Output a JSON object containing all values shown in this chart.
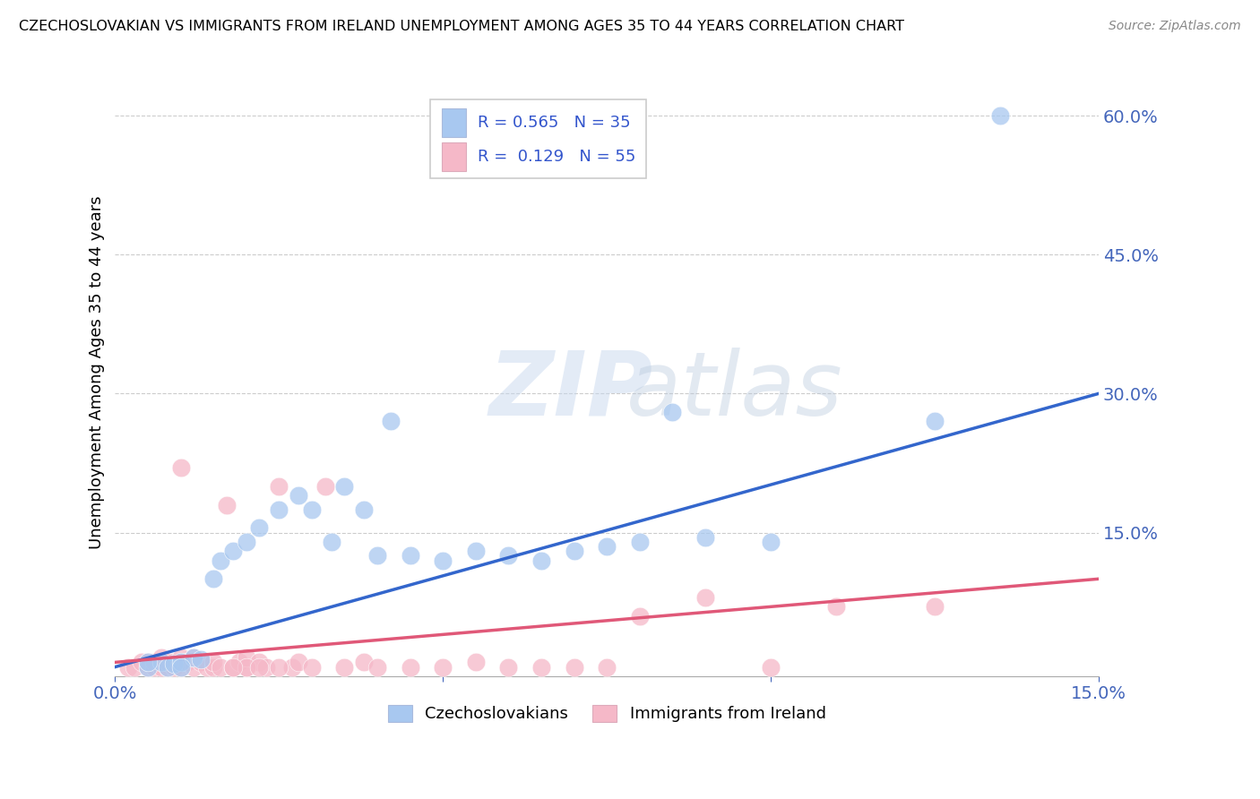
{
  "title": "CZECHOSLOVAKIAN VS IMMIGRANTS FROM IRELAND UNEMPLOYMENT AMONG AGES 35 TO 44 YEARS CORRELATION CHART",
  "source": "Source: ZipAtlas.com",
  "ylabel": "Unemployment Among Ages 35 to 44 years",
  "xlim": [
    0,
    0.15
  ],
  "ylim": [
    -0.005,
    0.65
  ],
  "yticks_right": [
    0.15,
    0.3,
    0.45,
    0.6
  ],
  "ytick_labels_right": [
    "15.0%",
    "30.0%",
    "45.0%",
    "60.0%"
  ],
  "legend_R1": "R = 0.565",
  "legend_N1": "N = 35",
  "legend_R2": "R =  0.129",
  "legend_N2": "N = 55",
  "blue_color": "#a8c8f0",
  "pink_color": "#f5b8c8",
  "blue_line_color": "#3366cc",
  "pink_line_color": "#e05878",
  "watermark_zip": "ZIP",
  "watermark_atlas": "atlas",
  "blue_scatter_x": [
    0.005,
    0.007,
    0.008,
    0.009,
    0.01,
    0.012,
    0.013,
    0.015,
    0.016,
    0.018,
    0.02,
    0.022,
    0.025,
    0.028,
    0.03,
    0.033,
    0.035,
    0.038,
    0.04,
    0.042,
    0.045,
    0.05,
    0.055,
    0.06,
    0.065,
    0.07,
    0.075,
    0.08,
    0.085,
    0.09,
    0.1,
    0.125,
    0.135,
    0.005,
    0.01
  ],
  "blue_scatter_y": [
    0.005,
    0.01,
    0.005,
    0.008,
    0.01,
    0.015,
    0.013,
    0.1,
    0.12,
    0.13,
    0.14,
    0.155,
    0.175,
    0.19,
    0.175,
    0.14,
    0.2,
    0.175,
    0.125,
    0.27,
    0.125,
    0.12,
    0.13,
    0.125,
    0.12,
    0.13,
    0.135,
    0.14,
    0.28,
    0.145,
    0.14,
    0.27,
    0.6,
    0.01,
    0.005
  ],
  "pink_scatter_x": [
    0.002,
    0.003,
    0.004,
    0.005,
    0.005,
    0.006,
    0.006,
    0.007,
    0.007,
    0.008,
    0.008,
    0.009,
    0.009,
    0.01,
    0.01,
    0.011,
    0.012,
    0.012,
    0.013,
    0.014,
    0.015,
    0.015,
    0.016,
    0.017,
    0.018,
    0.019,
    0.02,
    0.02,
    0.022,
    0.023,
    0.025,
    0.027,
    0.028,
    0.03,
    0.032,
    0.035,
    0.038,
    0.04,
    0.045,
    0.05,
    0.055,
    0.06,
    0.065,
    0.07,
    0.075,
    0.08,
    0.09,
    0.1,
    0.11,
    0.125,
    0.01,
    0.02,
    0.025,
    0.018,
    0.022
  ],
  "pink_scatter_y": [
    0.005,
    0.005,
    0.01,
    0.005,
    0.01,
    0.005,
    0.01,
    0.005,
    0.015,
    0.005,
    0.01,
    0.005,
    0.01,
    0.005,
    0.015,
    0.01,
    0.005,
    0.015,
    0.01,
    0.005,
    0.005,
    0.01,
    0.005,
    0.18,
    0.005,
    0.01,
    0.005,
    0.015,
    0.01,
    0.005,
    0.2,
    0.005,
    0.01,
    0.005,
    0.2,
    0.005,
    0.01,
    0.005,
    0.005,
    0.005,
    0.01,
    0.005,
    0.005,
    0.005,
    0.005,
    0.06,
    0.08,
    0.005,
    0.07,
    0.07,
    0.22,
    0.005,
    0.005,
    0.005,
    0.005
  ],
  "blue_trend_x0": 0.0,
  "blue_trend_y0": 0.005,
  "blue_trend_x1": 0.15,
  "blue_trend_y1": 0.3,
  "pink_trend_x0": 0.0,
  "pink_trend_y0": 0.01,
  "pink_trend_x1": 0.15,
  "pink_trend_y1": 0.1
}
